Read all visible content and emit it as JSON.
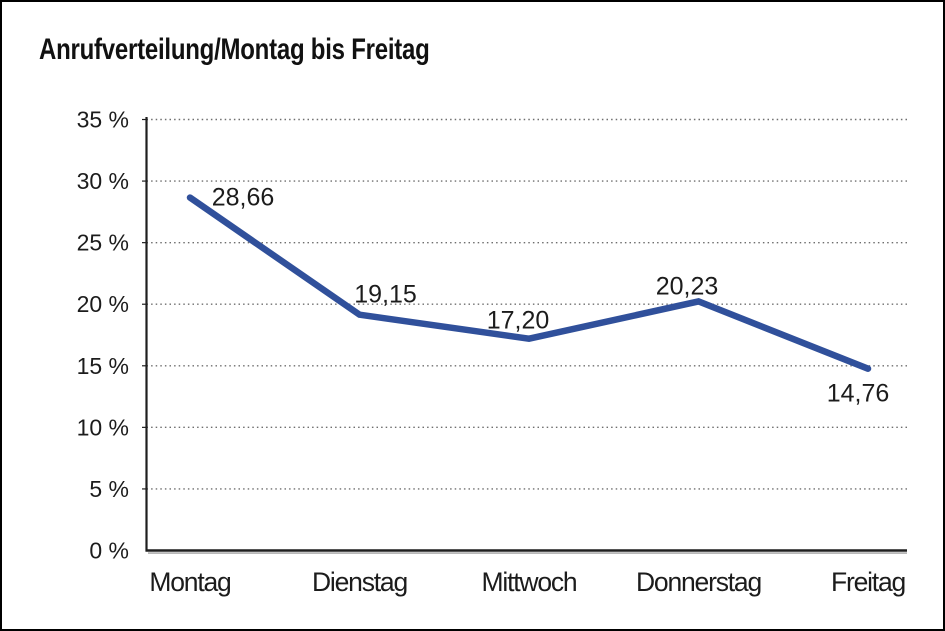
{
  "window": {
    "title": "Anrufverteilung/Montag bis Freitag"
  },
  "chart_data": {
    "type": "line",
    "title": "Anrufverteilung/Montag bis Freitag",
    "categories": [
      "Montag",
      "Dienstag",
      "Mittwoch",
      "Donnerstag",
      "Freitag"
    ],
    "series": [
      {
        "name": "Anrufverteilung",
        "values": [
          28.66,
          19.15,
          17.2,
          20.23,
          14.76
        ]
      }
    ],
    "data_labels": [
      "28,66",
      "19,15",
      "17,20",
      "20,23",
      "14,76"
    ],
    "y_tick_labels": [
      "0 %",
      "5 %",
      "10 %",
      "15 %",
      "20 %",
      "25 %",
      "30 %",
      "35 %"
    ],
    "ylim": [
      0,
      35
    ],
    "y_step": 5,
    "xlabel": "",
    "ylabel": "",
    "grid": "horizontal-dotted",
    "legend": "none",
    "colors": {
      "line": "#30509b",
      "grid": "#6e6e6e",
      "axis": "#1f1f1f",
      "axis_shadow": "#a0a0a0",
      "text": "#1c1c1c",
      "background": "#ffffff",
      "border": "#000000"
    }
  }
}
